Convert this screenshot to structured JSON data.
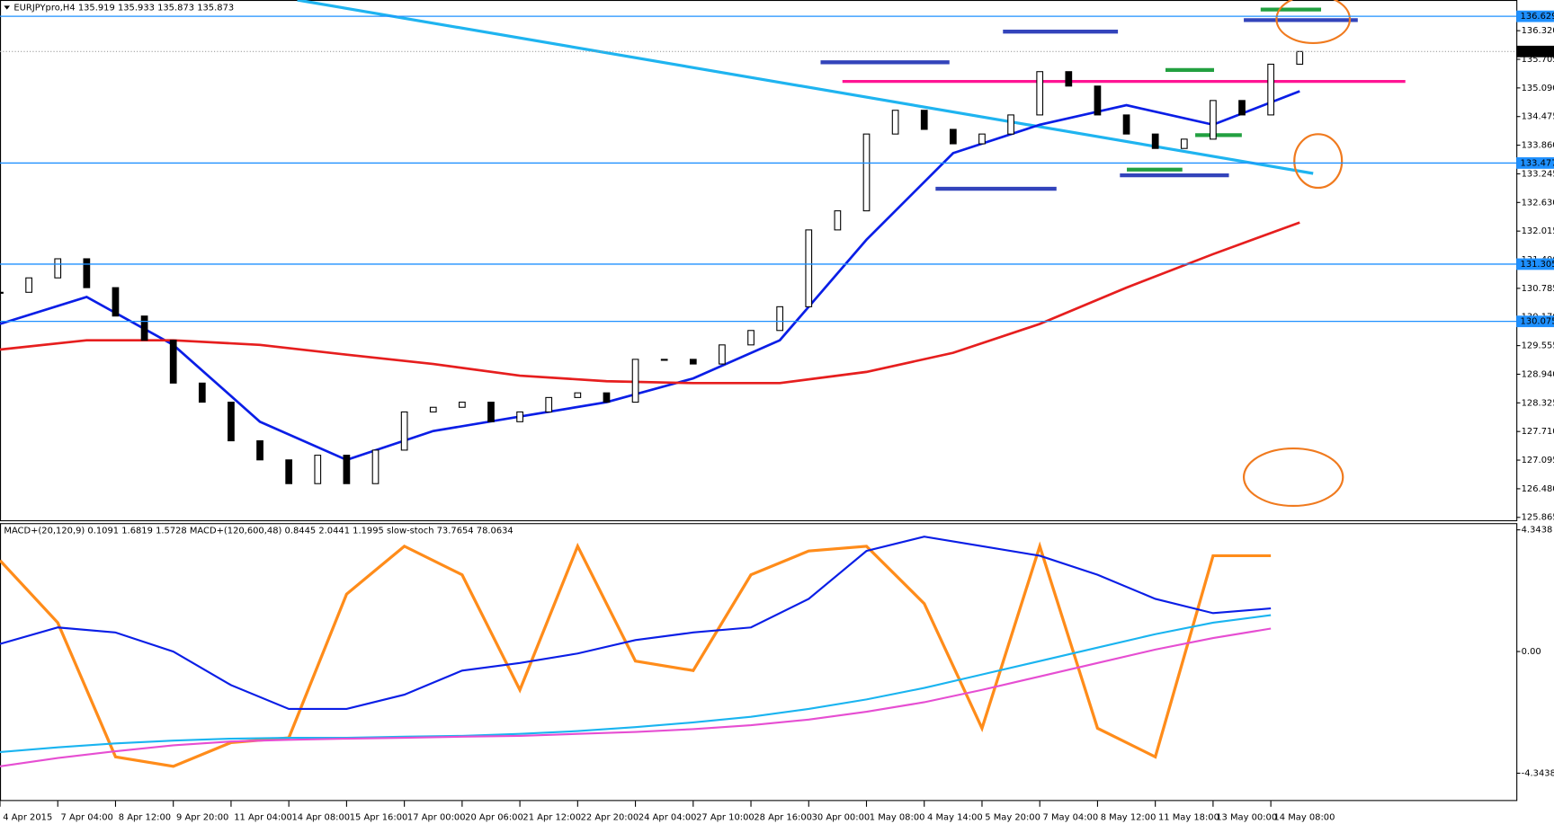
{
  "chart_data": [
    {
      "type": "candlestick",
      "title": "EURJPYpro,H4  135.919 135.933 135.873 135.873",
      "x": [
        0,
        4,
        8,
        12,
        16,
        20,
        24,
        28,
        32,
        36,
        40,
        44,
        48,
        52,
        56,
        60,
        64,
        68,
        72,
        76,
        80,
        84,
        88,
        92,
        96,
        100,
        104,
        108,
        112,
        116,
        120,
        124,
        128,
        132,
        136,
        140,
        144,
        148,
        152,
        156,
        160,
        164,
        168,
        172,
        176,
        180
      ],
      "close": [
        130.7,
        131.01,
        131.42,
        130.8,
        130.19,
        129.67,
        128.75,
        128.34,
        127.51,
        127.1,
        126.59,
        127.2,
        126.59,
        127.31,
        128.13,
        128.23,
        128.34,
        127.92,
        128.13,
        128.44,
        128.54,
        128.34,
        129.26,
        129.26,
        129.16,
        129.57,
        129.88,
        130.39,
        132.04,
        132.45,
        134.1,
        134.61,
        134.2,
        133.89,
        134.1,
        134.51,
        135.44,
        135.13,
        134.51,
        134.1,
        133.79,
        133.99,
        134.82,
        134.51,
        135.6,
        135.873
      ],
      "series": [
        {
          "color": "#0a1ee6",
          "x": [
            0,
            12,
            24,
            36,
            48,
            60,
            72,
            84,
            96,
            108,
            120,
            132,
            144,
            156,
            168,
            180
          ],
          "values": [
            130.02,
            130.6,
            129.57,
            127.92,
            127.1,
            127.72,
            128.03,
            128.34,
            128.85,
            129.67,
            131.83,
            133.69,
            134.3,
            134.72,
            134.3,
            135.02
          ]
        },
        {
          "color": "#e61e1e",
          "x": [
            0,
            12,
            24,
            36,
            48,
            60,
            72,
            84,
            96,
            108,
            120,
            132,
            144,
            156,
            168,
            180
          ],
          "values": [
            129.47,
            129.67,
            129.67,
            129.57,
            129.36,
            129.16,
            128.91,
            128.79,
            128.75,
            128.75,
            128.99,
            129.4,
            130.02,
            130.8,
            131.52,
            132.2
          ]
        }
      ],
      "xlim": [
        0,
        210
      ],
      "ylim": [
        125.803,
        136.979
      ],
      "yticks": [
        {
          "value": 136.32,
          "label": "136.320"
        },
        135.705,
        {
          "value": 135.09,
          "label": "135.090"
        },
        134.475,
        {
          "value": 133.86,
          "label": "133.860"
        },
        133.245,
        {
          "value": 132.63,
          "label": "132.630"
        },
        132.015,
        {
          "value": 131.4,
          "label": "131.400"
        },
        130.785,
        {
          "value": 130.17,
          "label": "130.170"
        },
        129.555,
        {
          "value": 128.94,
          "label": "128.940"
        },
        128.325,
        {
          "value": 127.71,
          "label": "127.710"
        },
        127.095,
        {
          "value": 126.48,
          "label": "126.480"
        },
        125.865
      ],
      "levels": [
        136.629,
        133.477,
        131.305,
        130.075
      ],
      "level_color": "#1e90ff",
      "last": 135.873
    },
    {
      "type": "line",
      "title": "MACD+(20,120,9) 0.1091 1.6819 1.5728  MACD+(120,600,48) 0.8445 2.0441 1.1995  slow-stoch 73.7654 78.0634",
      "x": [
        0,
        8,
        16,
        24,
        32,
        40,
        48,
        56,
        64,
        72,
        80,
        88,
        96,
        104,
        112,
        120,
        128,
        136,
        144,
        152,
        160,
        168,
        176
      ],
      "series": [
        {
          "color": "#ff8c1a",
          "values": [
            3.25,
            1.03,
            -3.76,
            -4.1,
            -3.25,
            -3.08,
            2.05,
            3.76,
            2.74,
            -1.37,
            3.76,
            -0.34,
            -0.68,
            2.74,
            3.59,
            3.76,
            1.71,
            -2.74,
            3.76,
            -2.74,
            -3.76,
            3.42,
            3.42
          ]
        },
        {
          "color": "#0a1ee6",
          "values": [
            0.27,
            0.86,
            0.68,
            0,
            -1.2,
            -2.05,
            -2.05,
            -1.54,
            -0.68,
            -0.41,
            -0.07,
            0.41,
            0.68,
            0.86,
            1.88,
            3.59,
            4.1,
            3.76,
            3.42,
            2.74,
            1.88,
            1.37,
            1.54
          ]
        },
        {
          "color": "#1ab4f0",
          "values": [
            -3.59,
            -3.42,
            -3.28,
            -3.18,
            -3.11,
            -3.08,
            -3.08,
            -3.04,
            -3.01,
            -2.94,
            -2.84,
            -2.7,
            -2.53,
            -2.33,
            -2.05,
            -1.71,
            -1.3,
            -0.82,
            -0.34,
            0.14,
            0.62,
            1.03,
            1.3
          ]
        },
        {
          "color": "#e64ed2",
          "values": [
            -4.1,
            -3.8,
            -3.56,
            -3.35,
            -3.21,
            -3.15,
            -3.11,
            -3.08,
            -3.04,
            -3.01,
            -2.94,
            -2.87,
            -2.77,
            -2.63,
            -2.43,
            -2.15,
            -1.81,
            -1.37,
            -0.89,
            -0.41,
            0.07,
            0.48,
            0.82
          ]
        }
      ],
      "xlim": [
        0,
        210
      ],
      "ylim": [
        -5.302,
        4.549
      ],
      "yticks": [
        4.3438,
        {
          "value": 0,
          "label": "0.00"
        },
        -4.3438
      ],
      "xticks": [
        {
          "value": 0,
          "label": "4 Apr 2015"
        },
        {
          "value": 8,
          "label": "7 Apr 04:00"
        },
        {
          "value": 16,
          "label": "8 Apr 12:00"
        },
        {
          "value": 24,
          "label": "9 Apr 20:00"
        },
        {
          "value": 32,
          "label": "11 Apr 04:00"
        },
        {
          "value": 40,
          "label": "14 Apr 08:00"
        },
        {
          "value": 48,
          "label": "15 Apr 16:00"
        },
        {
          "value": 56,
          "label": "17 Apr 00:00"
        },
        {
          "value": 64,
          "label": "20 Apr 06:00"
        },
        {
          "value": 72,
          "label": "21 Apr 12:00"
        },
        {
          "value": 80,
          "label": "22 Apr 20:00"
        },
        {
          "value": 88,
          "label": "24 Apr 04:00"
        },
        {
          "value": 96,
          "label": "27 Apr 10:00"
        },
        {
          "value": 104,
          "label": "28 Apr 16:00"
        },
        {
          "value": 112,
          "label": "30 Apr 00:00"
        },
        {
          "value": 120,
          "label": "1 May 08:00"
        },
        {
          "value": 128,
          "label": "4 May 14:00"
        },
        {
          "value": 136,
          "label": "5 May 20:00"
        },
        {
          "value": 144,
          "label": "7 May 04:00"
        },
        {
          "value": 152,
          "label": "8 May 12:00"
        },
        {
          "value": 160,
          "label": "11 May 18:00"
        },
        {
          "value": 168,
          "label": "13 May 00:00"
        },
        {
          "value": 176,
          "label": "14 May 08:00"
        }
      ]
    }
  ]
}
